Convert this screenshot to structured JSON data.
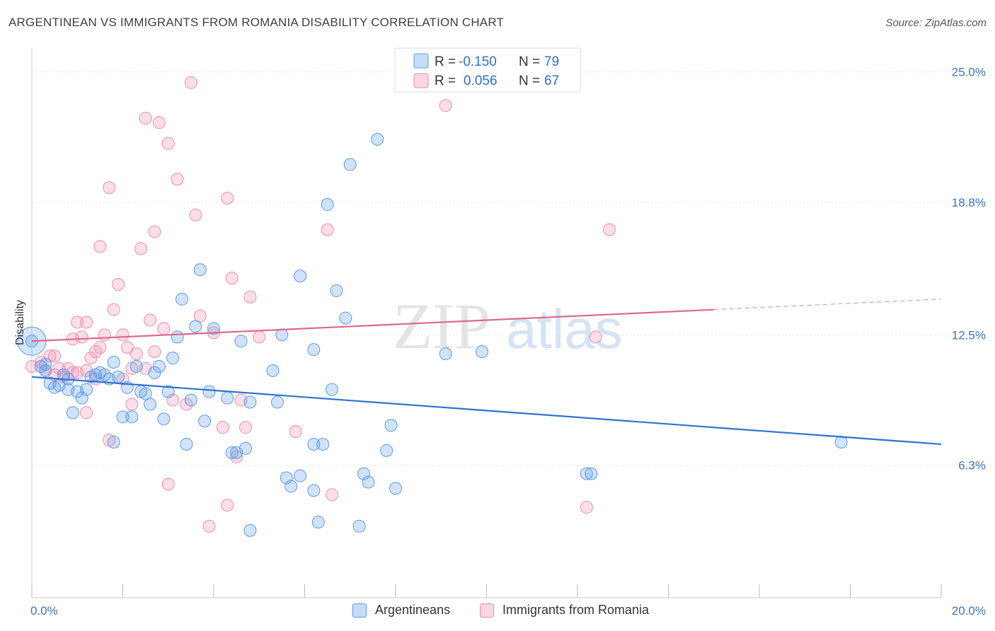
{
  "title": "ARGENTINEAN VS IMMIGRANTS FROM ROMANIA DISABILITY CORRELATION CHART",
  "source": "Source: ZipAtlas.com",
  "watermark": {
    "zip": "ZIP",
    "atlas": "atlas"
  },
  "legend_top": {
    "rows": [
      {
        "r_label": "R =",
        "r_value": "-0.150",
        "n_label": "N =",
        "n_value": "79",
        "color": "#5b9be8"
      },
      {
        "r_label": "R =",
        "r_value": "0.056",
        "n_label": "N =",
        "n_value": "67",
        "color": "#f08cab"
      }
    ]
  },
  "legend_bottom": {
    "items": [
      {
        "label": "Argentineans",
        "color": "#5b9be8"
      },
      {
        "label": "Immigrants from Romania",
        "color": "#f08cab"
      }
    ]
  },
  "colors": {
    "blue": "#5b9be8",
    "blue_line": "#2f72d0",
    "pink": "#f08cab",
    "pink_line": "#e0668f",
    "tick_text": "#3a74c8"
  },
  "chart_data": {
    "type": "scatter",
    "title": "ARGENTINEAN VS IMMIGRANTS FROM ROMANIA DISABILITY CORRELATION CHART",
    "xlabel": "",
    "ylabel": "Disability",
    "xlim": [
      0,
      20
    ],
    "ylim": [
      0,
      26
    ],
    "x_tick_labels": [
      "0.0%",
      "20.0%"
    ],
    "x_tick_values": [
      0,
      20
    ],
    "y_tick_labels": [
      "6.3%",
      "12.5%",
      "18.8%",
      "25.0%"
    ],
    "y_tick_values": [
      6.3,
      12.5,
      18.8,
      25.0
    ],
    "grid": true,
    "legend": "top-center",
    "series": [
      {
        "name": "Argentineans",
        "color": "#5b9be8",
        "r": -0.15,
        "n": 79,
        "trend": {
          "x": [
            0,
            20
          ],
          "y": [
            10.5,
            7.3
          ]
        },
        "points": [
          [
            0.0,
            12.2
          ],
          [
            0.2,
            11.0
          ],
          [
            0.3,
            10.8
          ],
          [
            0.4,
            10.2
          ],
          [
            0.5,
            10.0
          ],
          [
            0.6,
            10.1
          ],
          [
            0.7,
            10.6
          ],
          [
            0.8,
            9.9
          ],
          [
            0.9,
            8.8
          ],
          [
            1.1,
            9.5
          ],
          [
            1.2,
            9.9
          ],
          [
            1.3,
            10.5
          ],
          [
            1.4,
            10.6
          ],
          [
            1.5,
            10.7
          ],
          [
            1.6,
            10.6
          ],
          [
            1.7,
            10.4
          ],
          [
            1.8,
            11.2
          ],
          [
            1.8,
            7.4
          ],
          [
            1.9,
            10.5
          ],
          [
            2.0,
            8.6
          ],
          [
            2.1,
            10.0
          ],
          [
            2.2,
            8.6
          ],
          [
            2.3,
            11.0
          ],
          [
            2.4,
            9.8
          ],
          [
            2.5,
            9.7
          ],
          [
            2.6,
            9.2
          ],
          [
            2.7,
            10.7
          ],
          [
            2.8,
            11.0
          ],
          [
            2.9,
            8.5
          ],
          [
            3.1,
            11.4
          ],
          [
            3.2,
            12.4
          ],
          [
            3.3,
            14.2
          ],
          [
            3.4,
            7.3
          ],
          [
            3.5,
            9.4
          ],
          [
            3.6,
            12.9
          ],
          [
            3.7,
            15.6
          ],
          [
            3.8,
            8.4
          ],
          [
            3.9,
            9.8
          ],
          [
            4.0,
            12.8
          ],
          [
            4.3,
            9.5
          ],
          [
            4.4,
            6.9
          ],
          [
            4.5,
            6.9
          ],
          [
            4.6,
            12.2
          ],
          [
            4.7,
            7.1
          ],
          [
            4.8,
            9.3
          ],
          [
            4.8,
            3.2
          ],
          [
            5.3,
            10.8
          ],
          [
            5.4,
            9.3
          ],
          [
            5.5,
            12.5
          ],
          [
            5.6,
            5.7
          ],
          [
            5.7,
            5.3
          ],
          [
            5.9,
            15.3
          ],
          [
            5.9,
            5.8
          ],
          [
            6.2,
            11.8
          ],
          [
            6.2,
            7.3
          ],
          [
            6.2,
            5.1
          ],
          [
            6.4,
            7.3
          ],
          [
            6.3,
            3.6
          ],
          [
            6.5,
            18.7
          ],
          [
            6.6,
            9.9
          ],
          [
            6.7,
            14.6
          ],
          [
            6.9,
            13.3
          ],
          [
            7.0,
            20.6
          ],
          [
            7.2,
            3.4
          ],
          [
            7.3,
            5.9
          ],
          [
            7.4,
            5.5
          ],
          [
            7.6,
            21.8
          ],
          [
            7.8,
            7.0
          ],
          [
            7.9,
            8.2
          ],
          [
            8.0,
            5.2
          ],
          [
            9.1,
            11.6
          ],
          [
            9.9,
            11.7
          ],
          [
            12.2,
            5.9
          ],
          [
            12.3,
            5.9
          ],
          [
            17.8,
            7.4
          ],
          [
            0.3,
            11.1
          ],
          [
            0.8,
            10.4
          ],
          [
            1.0,
            9.8
          ],
          [
            3.0,
            9.8
          ]
        ]
      },
      {
        "name": "Immigrants from Romania",
        "color": "#f08cab",
        "r": 0.056,
        "n": 67,
        "trend": {
          "x": [
            0,
            15
          ],
          "y": [
            12.2,
            13.7
          ]
        },
        "trend_dashed": {
          "x": [
            15,
            20
          ],
          "y": [
            13.7,
            14.2
          ]
        },
        "points": [
          [
            0.0,
            11.0
          ],
          [
            0.2,
            11.2
          ],
          [
            0.3,
            10.8
          ],
          [
            0.4,
            11.5
          ],
          [
            0.5,
            10.6
          ],
          [
            0.6,
            10.9
          ],
          [
            0.7,
            10.5
          ],
          [
            0.8,
            10.9
          ],
          [
            0.9,
            10.7
          ],
          [
            1.0,
            13.1
          ],
          [
            1.1,
            12.4
          ],
          [
            1.2,
            13.1
          ],
          [
            1.2,
            8.8
          ],
          [
            1.3,
            11.4
          ],
          [
            1.4,
            10.4
          ],
          [
            1.4,
            11.7
          ],
          [
            1.5,
            11.9
          ],
          [
            1.5,
            16.7
          ],
          [
            1.6,
            12.5
          ],
          [
            1.7,
            7.5
          ],
          [
            1.7,
            19.5
          ],
          [
            1.8,
            13.7
          ],
          [
            1.9,
            14.9
          ],
          [
            2.0,
            12.5
          ],
          [
            2.0,
            10.4
          ],
          [
            2.1,
            11.9
          ],
          [
            2.2,
            10.9
          ],
          [
            2.2,
            9.2
          ],
          [
            2.3,
            11.6
          ],
          [
            2.4,
            16.6
          ],
          [
            2.5,
            22.8
          ],
          [
            2.6,
            13.2
          ],
          [
            2.7,
            17.4
          ],
          [
            2.7,
            11.7
          ],
          [
            2.8,
            22.6
          ],
          [
            2.9,
            12.8
          ],
          [
            3.0,
            21.6
          ],
          [
            3.0,
            5.4
          ],
          [
            3.1,
            9.4
          ],
          [
            3.2,
            19.9
          ],
          [
            3.4,
            9.2
          ],
          [
            3.5,
            24.5
          ],
          [
            3.6,
            18.2
          ],
          [
            3.7,
            13.4
          ],
          [
            3.9,
            3.4
          ],
          [
            4.0,
            12.6
          ],
          [
            4.2,
            8.1
          ],
          [
            4.3,
            19.0
          ],
          [
            4.3,
            4.4
          ],
          [
            4.4,
            15.2
          ],
          [
            4.5,
            6.7
          ],
          [
            4.6,
            9.4
          ],
          [
            4.7,
            8.1
          ],
          [
            4.8,
            14.3
          ],
          [
            5.0,
            12.4
          ],
          [
            5.8,
            7.9
          ],
          [
            6.5,
            17.5
          ],
          [
            6.6,
            4.9
          ],
          [
            9.1,
            23.4
          ],
          [
            12.2,
            4.3
          ],
          [
            12.4,
            12.4
          ],
          [
            12.7,
            17.5
          ],
          [
            0.5,
            11.5
          ],
          [
            1.2,
            10.8
          ],
          [
            0.9,
            12.3
          ],
          [
            2.5,
            10.9
          ],
          [
            1.0,
            10.7
          ]
        ]
      }
    ]
  }
}
